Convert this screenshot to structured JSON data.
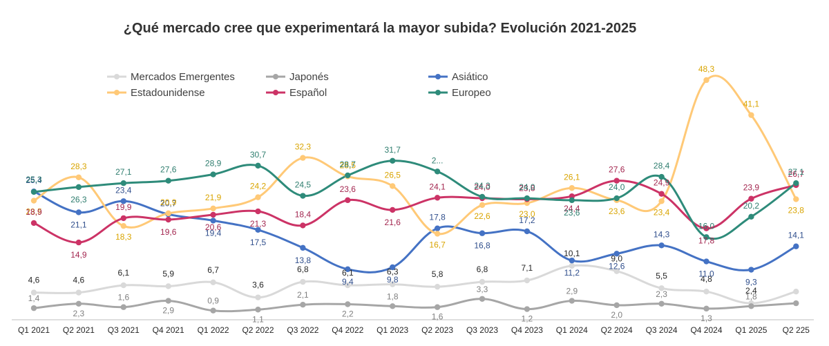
{
  "chart_data": {
    "type": "line",
    "title": "¿Qué mercado cree que experimentará la mayor subida? Evolución 2021-2025",
    "xlabel": "",
    "ylabel": "",
    "categories": [
      "Q1 2021",
      "Q2 2021",
      "Q3 2021",
      "Q4 2021",
      "Q1 2022",
      "Q2 2022",
      "Q3 2022",
      "Q4 2022",
      "Q1 2023",
      "Q2 2023",
      "Q3 2023",
      "Q4 2023",
      "Q1 2024",
      "Q2 2024",
      "Q3 2024",
      "Q4 2024",
      "Q1 2025",
      "Q2 225"
    ],
    "grid": false,
    "smooth": true,
    "legend_position": "top-left",
    "series": [
      {
        "name": "Mercados Emergentes",
        "color": "#d9d9d9",
        "label_color": "#262626",
        "values": [
          4.6,
          4.6,
          6.1,
          5.9,
          6.7,
          3.6,
          6.8,
          6.1,
          6.3,
          5.8,
          6.8,
          7.1,
          10.1,
          9.0,
          5.5,
          4.8,
          2.4,
          4.8
        ],
        "labels": [
          "4,6",
          "4,6",
          "6,1",
          "5,9",
          "6,7",
          "3,6",
          "6,8",
          "6,1",
          "6,3",
          "5,8",
          "6,8",
          "7,1",
          "10,1",
          "9,0",
          "5,5",
          "4,8",
          "2,4",
          ""
        ]
      },
      {
        "name": "Japonés",
        "color": "#a6a6a6",
        "label_color": "#7f7f7f",
        "values": [
          1.4,
          2.3,
          1.6,
          2.9,
          0.9,
          1.1,
          2.1,
          2.2,
          1.8,
          1.6,
          3.3,
          1.2,
          2.9,
          2.0,
          2.3,
          1.3,
          1.8,
          2.4
        ],
        "labels": [
          "1,4",
          "2,3",
          "1,6",
          "2,9",
          "0,9",
          "1,1",
          "2,1",
          "2,2",
          "1,8",
          "1,6",
          "3,3",
          "1,2",
          "2,9",
          "2,0",
          "2,3",
          "1,3",
          "1,8",
          ""
        ]
      },
      {
        "name": "Asiático",
        "color": "#4472c4",
        "label_color": "#2f4e8c",
        "values": [
          25.4,
          21.1,
          23.4,
          20.7,
          19.4,
          17.5,
          13.8,
          9.4,
          9.8,
          17.8,
          16.8,
          17.2,
          11.2,
          12.6,
          14.3,
          11.0,
          9.3,
          14.1
        ],
        "labels": [
          "25,4",
          "21,1",
          "23,4",
          "20,7",
          "19,4",
          "17,5",
          "13,8",
          "9,4",
          "9,8",
          "17,8",
          "16,8",
          "17,2",
          "11,2",
          "12,6",
          "14,3",
          "11,0",
          "9,3",
          "14,1"
        ]
      },
      {
        "name": "Estadounidense",
        "color": "#ffc977",
        "label_color": "#d9a400",
        "values": [
          23.5,
          28.3,
          18.3,
          20.9,
          21.9,
          24.2,
          32.3,
          28.5,
          26.5,
          16.7,
          22.6,
          23.0,
          26.1,
          23.6,
          23.4,
          48.3,
          41.1,
          23.8
        ],
        "labels": [
          "23,5",
          "28,3",
          "18,3",
          "20,9",
          "21,9",
          "24,2",
          "32,3",
          "28,5",
          "26,5",
          "16,7",
          "22,6",
          "23,0",
          "26,1",
          "23,6",
          "23,4",
          "48,3",
          "41,1",
          "23,8"
        ]
      },
      {
        "name": "Español",
        "color": "#cc3366",
        "label_color": "#a3264f",
        "values": [
          18.9,
          14.9,
          19.9,
          19.6,
          20.6,
          21.3,
          18.4,
          23.6,
          21.6,
          24.1,
          24.0,
          23.8,
          24.4,
          27.6,
          24.9,
          17.8,
          23.9,
          26.7
        ],
        "labels": [
          "18,9",
          "14,9",
          "19,9",
          "19,6",
          "20,6",
          "21,3",
          "18,4",
          "23,6",
          "21,6",
          "24,1",
          "24,0",
          "23,8",
          "24,4",
          "27,6",
          "24,9",
          "17,8",
          "23,9",
          "26,7"
        ]
      },
      {
        "name": "Europeo",
        "color": "#2e8b7a",
        "label_color": "#2e7d6e",
        "values": [
          25.3,
          26.3,
          27.1,
          27.6,
          28.9,
          30.7,
          24.5,
          28.7,
          31.7,
          29.5,
          24.3,
          24.0,
          23.6,
          24.0,
          28.4,
          16.0,
          20.2,
          27.1
        ],
        "labels": [
          "25,3",
          "26,3",
          "27,1",
          "27,6",
          "28,9",
          "30,7",
          "24,5",
          "28,7",
          "31,7",
          "2...",
          "24,3",
          "24,0",
          "23,6",
          "24,0",
          "28,4",
          "16,0",
          "20,2",
          "27,1"
        ]
      }
    ],
    "ylim": [
      0,
      52
    ]
  }
}
